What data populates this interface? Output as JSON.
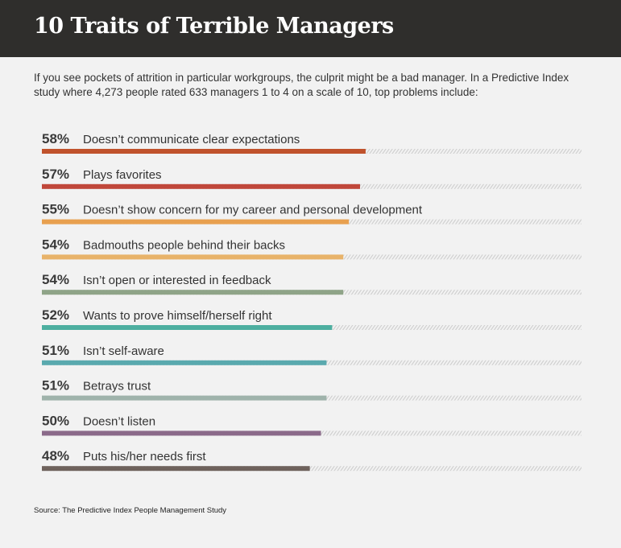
{
  "header": {
    "title": "10 Traits of Terrible Managers"
  },
  "subtitle": "If you see pockets of attrition in particular workgroups, the culprit might be a bad manager. In a Predictive Index study where 4,273 people rated 633 managers 1 to 4 on a scale of 10, top problems include:",
  "source": "Source: The Predictive Index People Management Study",
  "chart_data": {
    "type": "bar",
    "orientation": "horizontal",
    "xlim": [
      0,
      100
    ],
    "categories": [
      "Doesn’t communicate clear expectations",
      "Plays favorites",
      "Doesn’t show concern for my career and personal development",
      "Badmouths people behind their backs",
      "Isn’t open or interested in feedback",
      "Wants to prove himself/herself right",
      "Isn’t self-aware",
      "Betrays trust",
      "Doesn’t listen",
      "Puts his/her needs first"
    ],
    "values": [
      58,
      57,
      55,
      54,
      54,
      52,
      51,
      51,
      50,
      48
    ],
    "value_labels": [
      "58%",
      "57%",
      "55%",
      "54%",
      "54%",
      "52%",
      "51%",
      "51%",
      "50%",
      "48%"
    ],
    "colors": [
      "#c0522c",
      "#c0473a",
      "#e8a04f",
      "#e8b36a",
      "#8fa488",
      "#4dafa0",
      "#5aa9ae",
      "#9fb3ab",
      "#8b6a8a",
      "#6e625c"
    ]
  }
}
